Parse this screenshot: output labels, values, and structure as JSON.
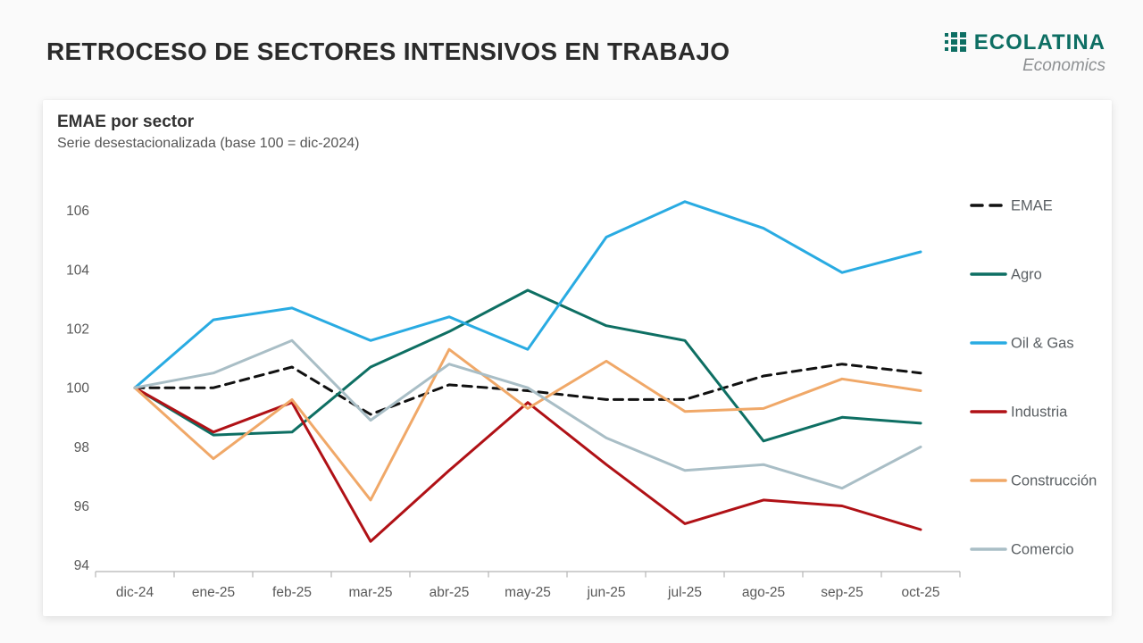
{
  "page": {
    "title": "RETROCESO DE SECTORES INTENSIVOS EN TRABAJO"
  },
  "logo": {
    "name": "ECOLATINA",
    "tagline": "Economics",
    "icon": "grid-of-squares-icon",
    "color": "#0d6e63",
    "tagline_color": "#8e9193"
  },
  "card": {
    "title": "EMAE por sector",
    "subtitle": "Serie desestacionalizada (base 100 = dic-2024)"
  },
  "chart_data": {
    "type": "line",
    "title": "EMAE por sector",
    "subtitle": "Serie desestacionalizada (base 100 = dic-2024)",
    "categories": [
      "dic-24",
      "ene-25",
      "feb-25",
      "mar-25",
      "abr-25",
      "may-25",
      "jun-25",
      "jul-25",
      "ago-25",
      "sep-25",
      "oct-25"
    ],
    "series": [
      {
        "name": "EMAE",
        "color": "#111111",
        "dashed": true,
        "values": [
          100.0,
          100.0,
          100.7,
          99.1,
          100.1,
          99.9,
          99.6,
          99.6,
          100.4,
          100.8,
          100.5
        ]
      },
      {
        "name": "Agro",
        "color": "#0e6f63",
        "dashed": false,
        "values": [
          100.0,
          98.4,
          98.5,
          100.7,
          101.9,
          103.3,
          102.1,
          101.6,
          98.2,
          99.0,
          98.8
        ]
      },
      {
        "name": "Oil & Gas",
        "color": "#29abe2",
        "dashed": false,
        "values": [
          100.0,
          102.3,
          102.7,
          101.6,
          102.4,
          101.3,
          105.1,
          106.3,
          105.4,
          103.9,
          104.6
        ]
      },
      {
        "name": "Industria",
        "color": "#b01116",
        "dashed": false,
        "values": [
          100.0,
          98.5,
          99.5,
          94.8,
          97.2,
          99.5,
          97.4,
          95.4,
          96.2,
          96.0,
          95.2
        ]
      },
      {
        "name": "Construcción",
        "color": "#f0a868",
        "dashed": false,
        "values": [
          100.0,
          97.6,
          99.6,
          96.2,
          101.3,
          99.3,
          100.9,
          99.2,
          99.3,
          100.3,
          99.9
        ]
      },
      {
        "name": "Comercio",
        "color": "#a9bec6",
        "dashed": false,
        "values": [
          100.0,
          100.5,
          101.6,
          98.9,
          100.8,
          100.0,
          98.3,
          97.2,
          97.4,
          96.6,
          98.0
        ]
      }
    ],
    "yticks": [
      94,
      96,
      98,
      100,
      102,
      104,
      106
    ],
    "ylim": [
      93.6,
      106.8
    ],
    "grid": false,
    "legend_position": "right",
    "axis_color": "#b5b5b5",
    "tick_label_color": "#595959",
    "legend_label_color": "#5a5f63"
  }
}
